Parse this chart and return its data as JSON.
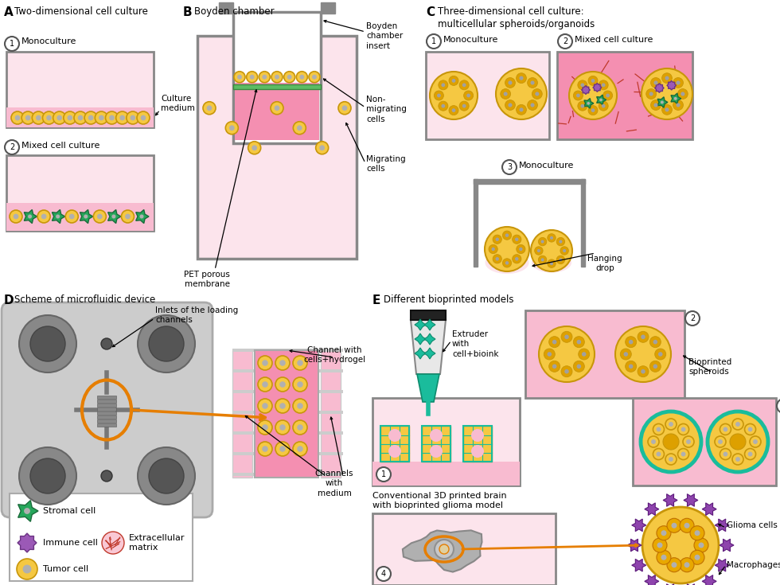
{
  "bg_color": "#ffffff",
  "pink_light": "#fce4ec",
  "pink_med": "#f8bbd0",
  "pink_bright": "#f48fb1",
  "tumor_fill": "#f5c842",
  "tumor_edge": "#c8960a",
  "stromal_fill": "#26a65b",
  "stromal_edge": "#1a6b3a",
  "immune_fill": "#9b59b6",
  "immune_edge": "#6c3483",
  "ecm_color": "#c0392b",
  "wall_gray": "#888888",
  "wall_light": "#aaaaaa",
  "device_bg": "#cccccc",
  "device_dark": "#777777",
  "device_darker": "#555555",
  "orange": "#e67e00",
  "teal": "#1abc9c",
  "teal_dark": "#0e8c6e",
  "purple_glioma": "#8e44ad",
  "yellow_macro": "#f0c030",
  "green_mem": "#5dbb63",
  "title_A": "Two-dimensional cell culture",
  "title_B": "Boyden chamber",
  "title_C": "Three-dimensional cell culture:\nmulticellular spheroids/organoids",
  "title_D": "Scheme of microfluidic device",
  "title_E": "Different bioprinted models",
  "lbl_mono": "Monoculture",
  "lbl_mixed": "Mixed cell culture",
  "lbl_culture_med": "Culture\nmedium",
  "lbl_boyden_ins": "Boyden\nchamber\ninsert",
  "lbl_non_mig": "Non-\nmigrating\ncells",
  "lbl_mig": "Migrating\ncells",
  "lbl_pet": "PET porous\nmembrane",
  "lbl_hang": "Hanging\ndrop",
  "lbl_inlets": "Inlets of the loading\nchannels",
  "lbl_ch_hydro": "Channel with\ncells+hydrogel",
  "lbl_ch_med": "Channels\nwith\nmedium",
  "lbl_stromal": "Stromal cell",
  "lbl_immune": "Immune cell",
  "lbl_ecm": "Extracellular\nmatrix",
  "lbl_tumor": "Tumor cell",
  "lbl_extruder": "Extruder\nwith\ncell+bioink",
  "lbl_bioprt": "Bioprinted\nspheroids",
  "lbl_conv3d": "Conventional 3D printed brain\nwith bioprinted glioma model",
  "lbl_glioma": "Glioma cells",
  "lbl_macro": "Macrophages"
}
